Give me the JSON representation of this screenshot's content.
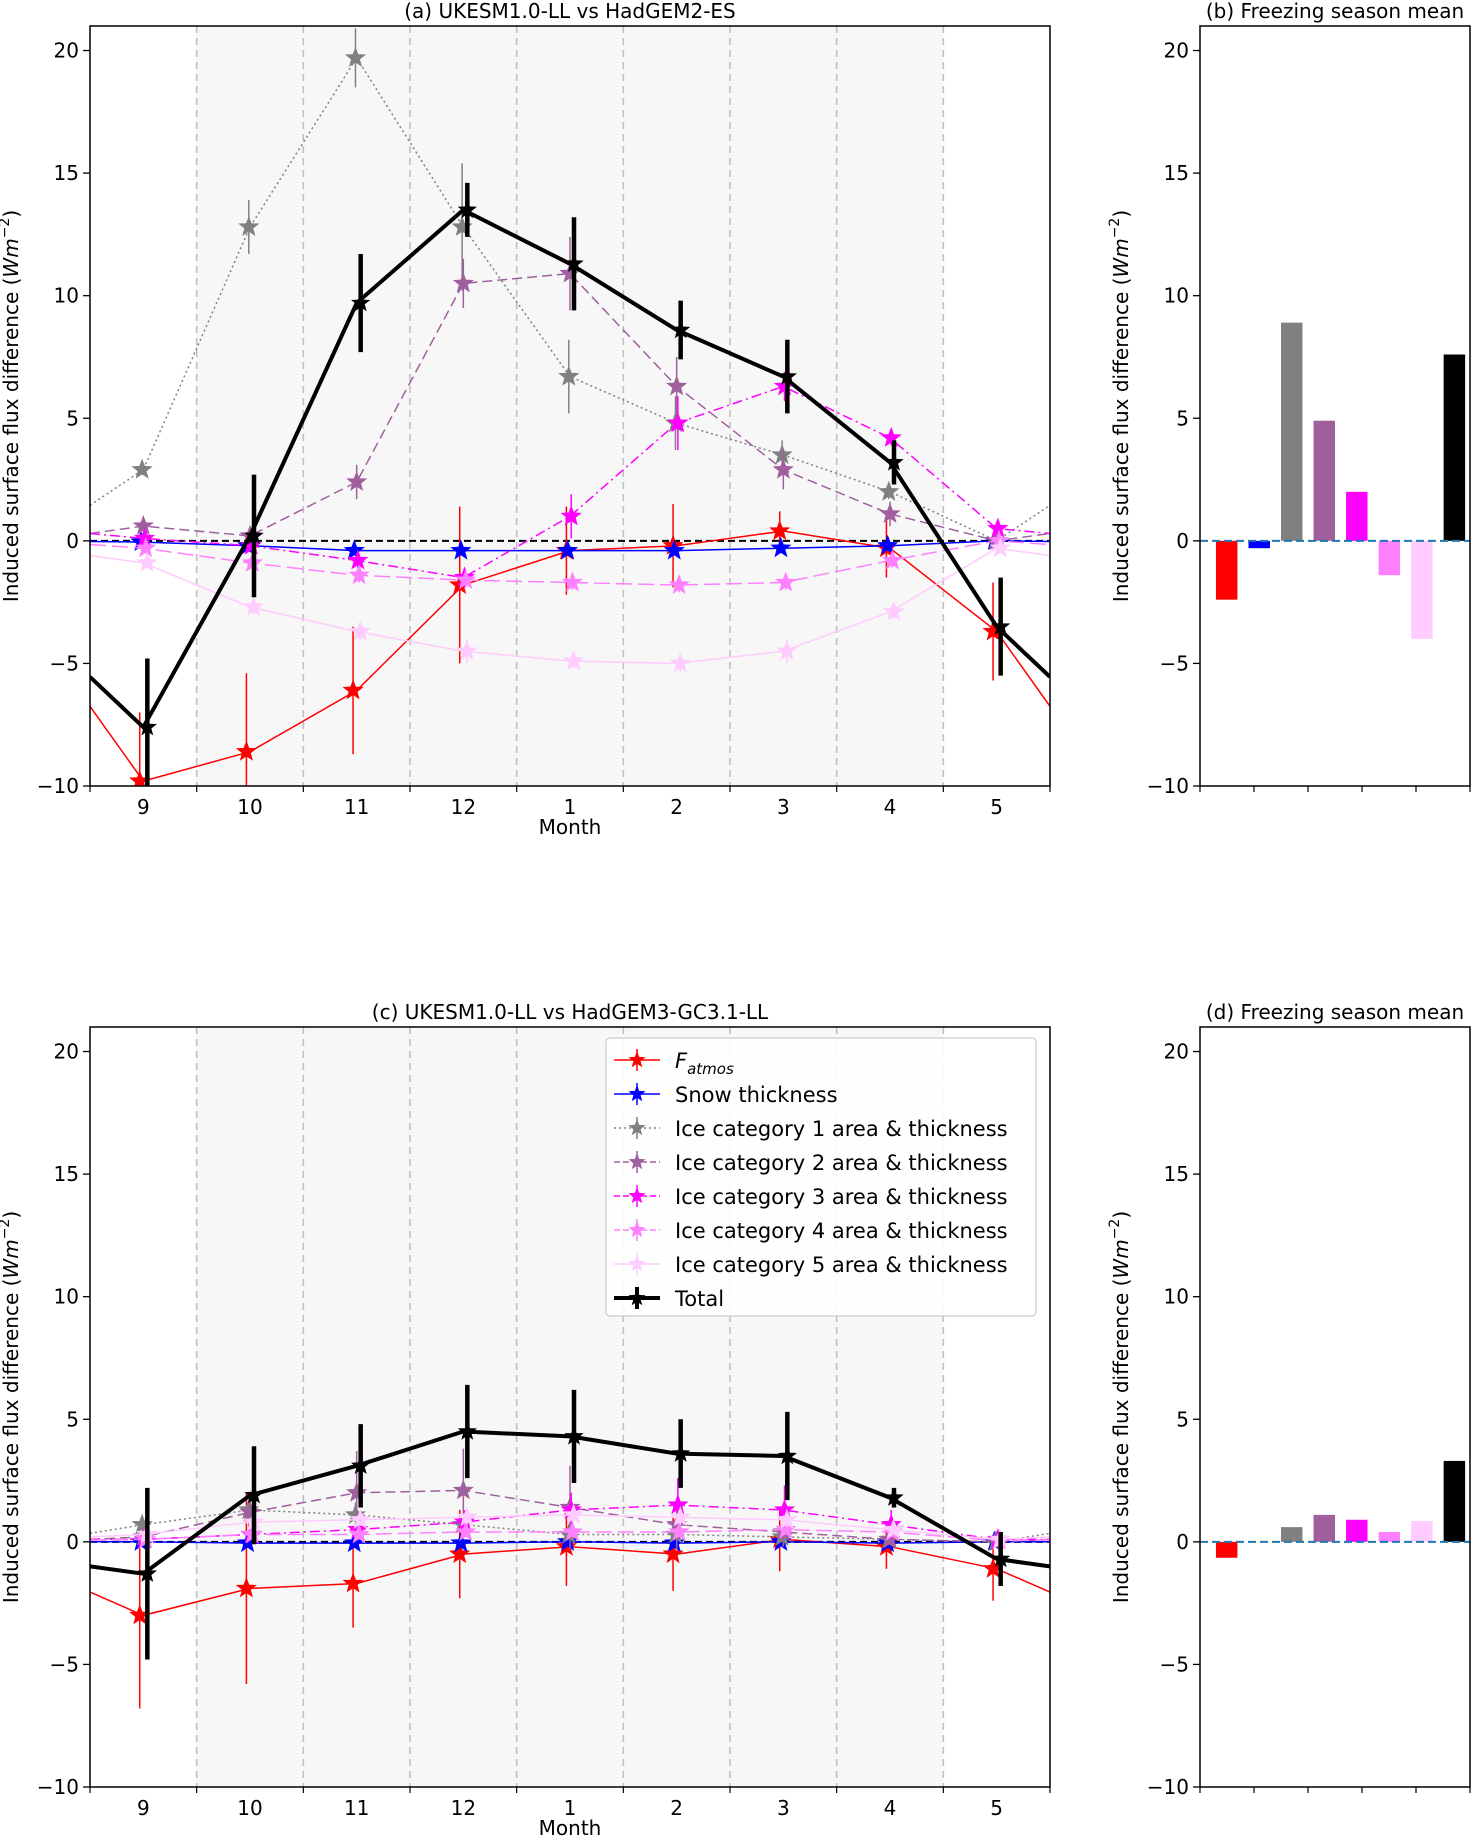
{
  "chart_data": [
    {
      "panel": "a",
      "type": "line",
      "title": "(a) UKESM1.0-LL vs HadGEM2-ES",
      "xlabel": "Month",
      "ylabel": "Induced surface flux difference (Wm^-2)",
      "ylabel_main": "Induced surface flux difference (",
      "ylabel_unit": "Wm",
      "ylabel_exp": "−2",
      "ylabel_close": ")",
      "categories": [
        "9",
        "10",
        "11",
        "12",
        "1",
        "2",
        "3",
        "4",
        "5"
      ],
      "ylim": [
        -10,
        21
      ],
      "yticks": [
        -10,
        -5,
        0,
        5,
        10,
        15,
        20
      ],
      "ytick_labels": [
        "−10",
        "−5",
        "0",
        "5",
        "10",
        "15",
        "20"
      ],
      "zero_line": true,
      "shaded_bands": true,
      "edge_values": {
        "left": {
          "F_atmos": -7.0,
          "Snow thickness": -0.05,
          "Ice category 1 area & thickness": 1.6,
          "Ice category 2 area & thickness": 0.3,
          "Ice category 3 area & thickness": 0.3,
          "Ice category 4 area & thickness": -0.1,
          "Ice category 5 area & thickness": -0.6,
          "Total": -5.4
        },
        "right": {
          "F_atmos": -7.0,
          "Snow thickness": -0.05,
          "Ice category 1 area & thickness": 1.6,
          "Ice category 2 area & thickness": 0.3,
          "Ice category 3 area & thickness": 0.3,
          "Ice category 4 area & thickness": -0.1,
          "Ice category 5 area & thickness": -0.6,
          "Total": -5.4
        }
      },
      "series": [
        {
          "name": "F_atmos",
          "values": [
            -9.8,
            -8.6,
            -6.1,
            -1.8,
            -0.4,
            -0.2,
            0.4,
            -0.3,
            -3.7
          ],
          "errors": [
            2.8,
            3.2,
            2.6,
            3.2,
            1.8,
            1.7,
            0.8,
            1.2,
            2.0
          ]
        },
        {
          "name": "Snow thickness",
          "values": [
            -0.05,
            -0.2,
            -0.4,
            -0.4,
            -0.4,
            -0.4,
            -0.3,
            -0.2,
            0.0
          ],
          "errors": [
            0.1,
            0.1,
            0.1,
            0.1,
            0.1,
            0.1,
            0.1,
            0.1,
            0.1
          ]
        },
        {
          "name": "Ice category 1 area & thickness",
          "values": [
            2.9,
            12.8,
            19.7,
            12.8,
            6.7,
            4.8,
            3.5,
            2.0,
            0.0
          ],
          "errors": [
            0.2,
            1.1,
            1.2,
            2.6,
            1.5,
            1.1,
            0.6,
            0.3,
            0.2
          ]
        },
        {
          "name": "Ice category 2 area & thickness",
          "values": [
            0.6,
            0.2,
            2.4,
            10.5,
            10.9,
            6.3,
            2.9,
            1.1,
            0.0
          ],
          "errors": [
            0.2,
            0.2,
            0.7,
            1.0,
            1.5,
            1.2,
            0.8,
            0.5,
            0.1
          ]
        },
        {
          "name": "Ice category 3 area & thickness",
          "values": [
            0.1,
            -0.2,
            -0.8,
            -1.5,
            1.0,
            4.8,
            6.3,
            4.2,
            0.5
          ],
          "errors": [
            0.2,
            0.2,
            0.3,
            0.4,
            0.9,
            1.1,
            0.6,
            0.3,
            0.2
          ]
        },
        {
          "name": "Ice category 4 area & thickness",
          "values": [
            -0.3,
            -0.9,
            -1.4,
            -1.6,
            -1.7,
            -1.8,
            -1.7,
            -0.8,
            0.0
          ],
          "errors": [
            0.2,
            0.3,
            0.3,
            0.3,
            0.3,
            0.3,
            0.3,
            0.3,
            0.2
          ]
        },
        {
          "name": "Ice category 5 area & thickness",
          "values": [
            -0.9,
            -2.7,
            -3.7,
            -4.5,
            -4.9,
            -5.0,
            -4.5,
            -2.9,
            -0.3
          ],
          "errors": [
            0.2,
            0.3,
            0.4,
            0.5,
            0.3,
            0.4,
            0.5,
            0.3,
            0.2
          ]
        },
        {
          "name": "Total",
          "values": [
            -7.6,
            0.2,
            9.7,
            13.5,
            11.3,
            8.6,
            6.7,
            3.2,
            -3.5
          ],
          "errors": [
            2.8,
            2.5,
            2.0,
            1.1,
            1.9,
            1.2,
            1.5,
            0.9,
            2.0
          ]
        }
      ]
    },
    {
      "panel": "b",
      "type": "bar",
      "title": "(b) Freezing season mean",
      "xlabel": "",
      "ylabel": "Induced surface flux difference (Wm^-2)",
      "ylabel_main": "Induced surface flux difference (",
      "ylabel_unit": "Wm",
      "ylabel_exp": "−2",
      "ylabel_close": ")",
      "categories": [
        "F_atmos",
        "Snow thickness",
        "Ice category 1 area & thickness",
        "Ice category 2 area & thickness",
        "Ice category 3 area & thickness",
        "Ice category 4 area & thickness",
        "Ice category 5 area & thickness",
        "Total"
      ],
      "values": [
        -2.4,
        -0.3,
        8.9,
        4.9,
        2.0,
        -1.4,
        -4.0,
        7.6
      ],
      "ylim": [
        -10,
        21
      ],
      "yticks": [
        -10,
        -5,
        0,
        5,
        10,
        15,
        20
      ],
      "ytick_labels": [
        "−10",
        "−5",
        "0",
        "5",
        "10",
        "15",
        "20"
      ]
    },
    {
      "panel": "c",
      "type": "line",
      "title": "(c) UKESM1.0-LL vs HadGEM3-GC3.1-LL",
      "xlabel": "Month",
      "ylabel": "Induced surface flux difference (Wm^-2)",
      "ylabel_main": "Induced surface flux difference (",
      "ylabel_unit": "Wm",
      "ylabel_exp": "−2",
      "ylabel_close": ")",
      "categories": [
        "9",
        "10",
        "11",
        "12",
        "1",
        "2",
        "3",
        "4",
        "5"
      ],
      "ylim": [
        -10,
        21
      ],
      "yticks": [
        -10,
        -5,
        0,
        5,
        10,
        15,
        20
      ],
      "ytick_labels": [
        "−10",
        "−5",
        "0",
        "5",
        "10",
        "15",
        "20"
      ],
      "zero_line": true,
      "shaded_bands": true,
      "legend": {
        "placement": "top-right"
      },
      "series": [
        {
          "name": "F_atmos",
          "values": [
            -3.0,
            -1.9,
            -1.7,
            -0.5,
            -0.2,
            -0.5,
            0.1,
            -0.2,
            -1.1
          ],
          "errors": [
            3.8,
            3.9,
            1.8,
            1.8,
            1.6,
            1.5,
            1.3,
            0.9,
            1.3
          ]
        },
        {
          "name": "Snow thickness",
          "values": [
            0.0,
            -0.05,
            -0.05,
            -0.05,
            0.0,
            -0.05,
            0.0,
            -0.05,
            0.0
          ],
          "errors": [
            0.05,
            0.05,
            0.05,
            0.05,
            0.05,
            0.05,
            0.05,
            0.05,
            0.05
          ]
        },
        {
          "name": "Ice category 1 area & thickness",
          "values": [
            0.7,
            1.3,
            1.1,
            0.7,
            0.3,
            0.3,
            0.2,
            0.1,
            0.0
          ],
          "errors": [
            0.2,
            0.7,
            0.5,
            0.4,
            0.2,
            0.2,
            0.2,
            0.1,
            0.1
          ]
        },
        {
          "name": "Ice category 2 area & thickness",
          "values": [
            0.2,
            1.2,
            2.0,
            2.1,
            1.4,
            0.7,
            0.4,
            0.1,
            0.0
          ],
          "errors": [
            0.2,
            0.6,
            1.7,
            1.7,
            1.7,
            1.0,
            0.6,
            0.2,
            0.1
          ]
        },
        {
          "name": "Ice category 3 area & thickness",
          "values": [
            0.1,
            0.3,
            0.5,
            0.8,
            1.3,
            1.5,
            1.3,
            0.7,
            0.1
          ],
          "errors": [
            0.1,
            0.2,
            0.3,
            0.5,
            0.7,
            1.1,
            1.0,
            0.6,
            0.1
          ]
        },
        {
          "name": "Ice category 4 area & thickness",
          "values": [
            0.1,
            0.3,
            0.3,
            0.4,
            0.4,
            0.4,
            0.5,
            0.4,
            0.05
          ],
          "errors": [
            0.1,
            0.1,
            0.1,
            0.2,
            0.2,
            0.2,
            0.2,
            0.2,
            0.1
          ]
        },
        {
          "name": "Ice category 5 area & thickness",
          "values": [
            0.3,
            0.8,
            0.9,
            1.0,
            1.1,
            1.0,
            0.9,
            0.5,
            0.1
          ],
          "errors": [
            0.1,
            0.2,
            0.2,
            0.3,
            0.3,
            0.3,
            0.3,
            0.2,
            0.1
          ]
        },
        {
          "name": "Total",
          "values": [
            -1.3,
            1.9,
            3.1,
            4.5,
            4.3,
            3.6,
            3.5,
            1.8,
            -0.7
          ],
          "errors": [
            3.5,
            2.0,
            1.7,
            1.9,
            1.9,
            1.4,
            1.8,
            0.4,
            1.1
          ]
        }
      ]
    },
    {
      "panel": "d",
      "type": "bar",
      "title": "(d) Freezing season mean",
      "xlabel": "",
      "ylabel": "Induced surface flux difference (Wm^-2)",
      "ylabel_main": "Induced surface flux difference (",
      "ylabel_unit": "Wm",
      "ylabel_exp": "−2",
      "ylabel_close": ")",
      "categories": [
        "F_atmos",
        "Snow thickness",
        "Ice category 1 area & thickness",
        "Ice category 2 area & thickness",
        "Ice category 3 area & thickness",
        "Ice category 4 area & thickness",
        "Ice category 5 area & thickness",
        "Total"
      ],
      "values": [
        -0.65,
        0.0,
        0.6,
        1.1,
        0.9,
        0.4,
        0.85,
        3.3
      ],
      "ylim": [
        -10,
        21
      ],
      "yticks": [
        -10,
        -5,
        0,
        5,
        10,
        15,
        20
      ],
      "ytick_labels": [
        "−10",
        "−5",
        "0",
        "5",
        "10",
        "15",
        "20"
      ]
    }
  ],
  "legend": {
    "entries": [
      {
        "key": "F_atmos",
        "label_main": "F",
        "label_sub": "atmos",
        "color": "#ff0000",
        "style": "solid"
      },
      {
        "key": "Snow thickness",
        "label_main": "Snow thickness",
        "label_sub": "",
        "color": "#0000ff",
        "style": "solid"
      },
      {
        "key": "Ice category 1 area & thickness",
        "label_main": "Ice category 1 area & thickness",
        "label_sub": "",
        "color": "#808080",
        "style": "dotted"
      },
      {
        "key": "Ice category 2 area & thickness",
        "label_main": "Ice category 2 area & thickness",
        "label_sub": "",
        "color": "#a0609e",
        "style": "dashed"
      },
      {
        "key": "Ice category 3 area & thickness",
        "label_main": "Ice category 3 area & thickness",
        "label_sub": "",
        "color": "#ff00ff",
        "style": "dashdot"
      },
      {
        "key": "Ice category 4 area & thickness",
        "label_main": "Ice category 4 area & thickness",
        "label_sub": "",
        "color": "#ff80ff",
        "style": "longdash"
      },
      {
        "key": "Ice category 5 area & thickness",
        "label_main": "Ice category 5 area & thickness",
        "label_sub": "",
        "color": "#ffccff",
        "style": "solid"
      },
      {
        "key": "Total",
        "label_main": "Total",
        "label_sub": "",
        "color": "#000000",
        "style": "thick"
      }
    ]
  },
  "colors": {
    "band_fill": "#f7f7f7",
    "band_line": "#bfbfbf",
    "zero_line_lines": "#000000",
    "zero_line_bars": "#1f77b4"
  }
}
